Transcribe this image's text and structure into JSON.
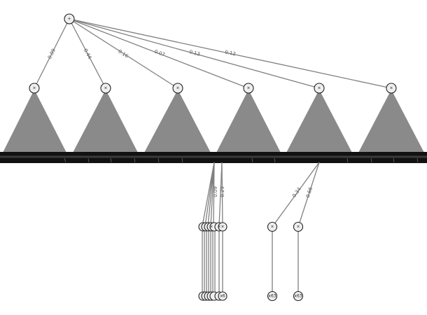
{
  "root": {
    "symbol": "+"
  },
  "products": [
    {
      "symbol": "×",
      "weight": "0.09"
    },
    {
      "symbol": "×",
      "weight": "0.44"
    },
    {
      "symbol": "×",
      "weight": "0.16"
    },
    {
      "symbol": "×",
      "weight": "0.07"
    },
    {
      "symbol": "×",
      "weight": "0.13"
    },
    {
      "symbol": "×",
      "weight": "0.12"
    }
  ],
  "middle_cluster": {
    "weights": [
      "0.09",
      "0.29"
    ],
    "symbol": "×",
    "leaf_label": "x6"
  },
  "right_branch": {
    "weights": [
      "0.34",
      "0.66"
    ],
    "children": [
      {
        "symbol": "×",
        "leaf_label": "x63"
      },
      {
        "symbol": "×",
        "leaf_label": "x63"
      }
    ]
  },
  "colors": {
    "edge": "#808080",
    "fan": "#8a8a8a",
    "band": "#111111",
    "node_fill": "#efefef",
    "node_stroke": "#222222"
  }
}
